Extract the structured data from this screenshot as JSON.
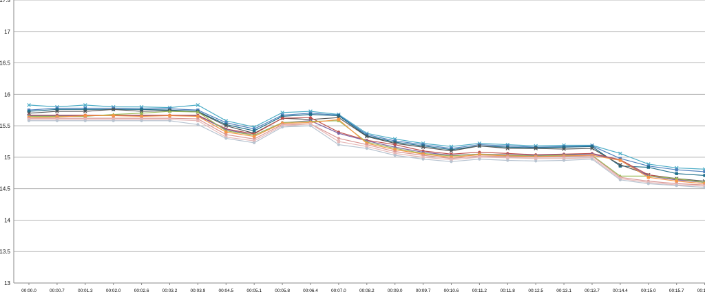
{
  "chart_data": {
    "type": "line",
    "title": "",
    "xlabel": "",
    "ylabel": "",
    "ylim": [
      13,
      17.5
    ],
    "yticks": [
      "13",
      "13.5",
      "14",
      "14.5",
      "15",
      "15.5",
      "16",
      "16.5",
      "17",
      "17.5"
    ],
    "categories": [
      "00:00.0",
      "00:00.7",
      "00:01.3",
      "00:02.0",
      "00:02.6",
      "00:03.2",
      "00:03.9",
      "00:04.5",
      "00:05.1",
      "00:05.8",
      "00:06.4",
      "00:07.0",
      "00:08.2",
      "00:09.0",
      "00:09.7",
      "00:10.6",
      "00:11.2",
      "00:11.8",
      "00:12.5",
      "00:13.1",
      "00:13.7",
      "00:14.4",
      "00:15.0",
      "00:15.7",
      "00:16.3"
    ],
    "grid": true,
    "legend": "none",
    "series": [
      {
        "color": "#4bacc6",
        "marker": "x",
        "values": [
          15.83,
          15.8,
          15.83,
          15.8,
          15.8,
          15.79,
          15.83,
          15.58,
          15.48,
          15.71,
          15.73,
          15.68,
          15.38,
          15.29,
          15.22,
          15.17,
          15.22,
          15.2,
          15.18,
          15.19,
          15.19,
          15.06,
          14.89,
          14.83,
          14.81
        ]
      },
      {
        "color": "#4f81bd",
        "marker": "square",
        "values": [
          15.75,
          15.78,
          15.78,
          15.78,
          15.77,
          15.77,
          15.75,
          15.55,
          15.45,
          15.67,
          15.7,
          15.67,
          15.36,
          15.26,
          15.2,
          15.14,
          15.2,
          15.18,
          15.16,
          15.17,
          15.18,
          14.98,
          14.86,
          14.8,
          14.77
        ]
      },
      {
        "color": "#1f6f8b",
        "marker": "square",
        "values": [
          15.73,
          15.76,
          15.76,
          15.76,
          15.76,
          15.75,
          15.73,
          15.52,
          15.42,
          15.65,
          15.68,
          15.66,
          15.34,
          15.24,
          15.18,
          15.12,
          15.18,
          15.16,
          15.15,
          15.16,
          15.17,
          14.86,
          14.84,
          14.74,
          14.71
        ]
      },
      {
        "color": "#555555",
        "marker": "x",
        "values": [
          15.7,
          15.73,
          15.73,
          15.76,
          15.73,
          15.74,
          15.72,
          15.5,
          15.38,
          15.62,
          15.6,
          15.63,
          15.33,
          15.22,
          15.16,
          15.1,
          15.18,
          15.14,
          15.14,
          15.13,
          15.14,
          14.88,
          14.72,
          14.66,
          14.62
        ]
      },
      {
        "color": "#c0504d",
        "marker": "circle",
        "values": [
          15.67,
          15.67,
          15.67,
          15.67,
          15.67,
          15.67,
          15.67,
          15.45,
          15.37,
          15.62,
          15.63,
          15.4,
          15.27,
          15.2,
          15.1,
          15.05,
          15.08,
          15.06,
          15.04,
          15.05,
          15.06,
          14.96,
          14.72,
          14.65,
          14.6
        ]
      },
      {
        "color": "#8064a2",
        "marker": "circle",
        "values": [
          15.66,
          15.66,
          15.66,
          15.66,
          15.66,
          15.66,
          15.66,
          15.44,
          15.35,
          15.55,
          15.58,
          15.38,
          15.26,
          15.16,
          15.08,
          15.03,
          15.05,
          15.04,
          15.03,
          15.04,
          15.05,
          14.95,
          14.7,
          14.64,
          14.6
        ]
      },
      {
        "color": "#9bbb59",
        "marker": "triangle",
        "values": [
          15.65,
          15.65,
          15.65,
          15.68,
          15.7,
          15.73,
          15.72,
          15.42,
          15.35,
          15.55,
          15.57,
          15.58,
          15.24,
          15.14,
          15.06,
          15.02,
          15.05,
          15.03,
          15.02,
          15.03,
          15.03,
          14.7,
          14.7,
          14.66,
          14.6
        ]
      },
      {
        "color": "#f79646",
        "marker": "square",
        "values": [
          15.63,
          15.64,
          15.66,
          15.66,
          15.65,
          15.66,
          15.65,
          15.4,
          15.33,
          15.54,
          15.55,
          15.6,
          15.22,
          15.12,
          15.05,
          15.0,
          15.04,
          15.02,
          15.01,
          15.02,
          15.03,
          14.95,
          14.68,
          14.62,
          14.58
        ]
      },
      {
        "color": "#d99694",
        "marker": "circle",
        "values": [
          15.62,
          15.62,
          15.62,
          15.62,
          15.62,
          15.62,
          15.61,
          15.36,
          15.29,
          15.52,
          15.53,
          15.3,
          15.2,
          15.09,
          15.03,
          14.98,
          15.02,
          15.01,
          15.0,
          15.01,
          15.02,
          14.68,
          14.62,
          14.58,
          14.56
        ]
      },
      {
        "color": "#e6b9b8",
        "marker": "square",
        "values": [
          15.6,
          15.6,
          15.6,
          15.6,
          15.6,
          15.6,
          15.58,
          15.32,
          15.26,
          15.5,
          15.53,
          15.25,
          15.17,
          15.06,
          15.0,
          14.96,
          15.0,
          14.99,
          14.98,
          14.98,
          14.99,
          14.66,
          14.6,
          14.56,
          14.54
        ]
      },
      {
        "color": "#b7c3d0",
        "marker": "circle",
        "values": [
          15.58,
          15.58,
          15.58,
          15.58,
          15.58,
          15.58,
          15.52,
          15.3,
          15.23,
          15.48,
          15.5,
          15.2,
          15.14,
          15.03,
          14.97,
          14.93,
          14.97,
          14.95,
          14.94,
          14.95,
          14.97,
          14.64,
          14.58,
          14.55,
          14.52
        ]
      }
    ]
  }
}
